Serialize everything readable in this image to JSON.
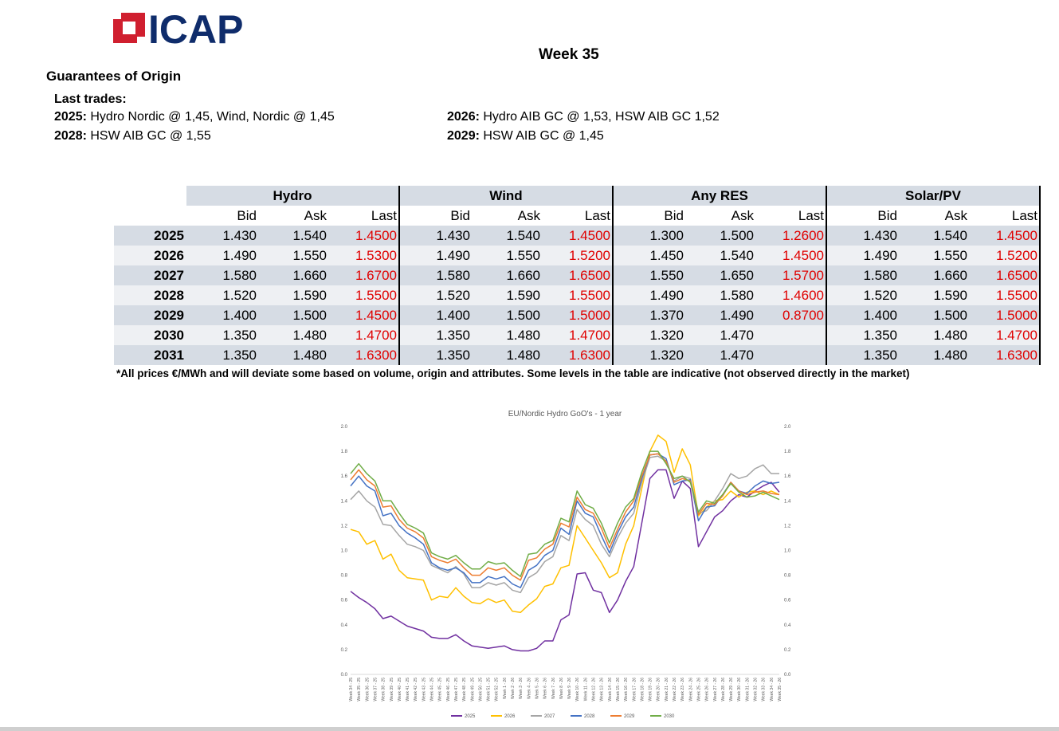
{
  "header": {
    "logo_text": "ICAP",
    "week": "Week 35",
    "section_title": "Guarantees of Origin"
  },
  "trades": {
    "heading": "Last trades:",
    "items": [
      {
        "year": "2025:",
        "text": " Hydro Nordic @ 1,45, Wind, Nordic @ 1,45"
      },
      {
        "year": "2026:",
        "text": " Hydro AIB GC @ 1,53, HSW AIB GC 1,52"
      },
      {
        "year": "2028:",
        "text": " HSW AIB GC @ 1,55"
      },
      {
        "year": "2029:",
        "text": " HSW AIB GC @ 1,45"
      }
    ]
  },
  "table": {
    "groups": [
      "Hydro",
      "Wind",
      "Any RES",
      "Solar/PV"
    ],
    "subheaders": [
      "Bid",
      "Ask",
      "Last"
    ],
    "rows": [
      {
        "year": "2025",
        "cells": [
          "1.430",
          "1.540",
          "1.4500",
          "1.430",
          "1.540",
          "1.4500",
          "1.300",
          "1.500",
          "1.2600",
          "1.430",
          "1.540",
          "1.4500"
        ]
      },
      {
        "year": "2026",
        "cells": [
          "1.490",
          "1.550",
          "1.5300",
          "1.490",
          "1.550",
          "1.5200",
          "1.450",
          "1.540",
          "1.4500",
          "1.490",
          "1.550",
          "1.5200"
        ]
      },
      {
        "year": "2027",
        "cells": [
          "1.580",
          "1.660",
          "1.6700",
          "1.580",
          "1.660",
          "1.6500",
          "1.550",
          "1.650",
          "1.5700",
          "1.580",
          "1.660",
          "1.6500"
        ]
      },
      {
        "year": "2028",
        "cells": [
          "1.520",
          "1.590",
          "1.5500",
          "1.520",
          "1.590",
          "1.5500",
          "1.490",
          "1.580",
          "1.4600",
          "1.520",
          "1.590",
          "1.5500"
        ]
      },
      {
        "year": "2029",
        "cells": [
          "1.400",
          "1.500",
          "1.4500",
          "1.400",
          "1.500",
          "1.5000",
          "1.370",
          "1.490",
          "0.8700",
          "1.400",
          "1.500",
          "1.5000"
        ]
      },
      {
        "year": "2030",
        "cells": [
          "1.350",
          "1.480",
          "1.4700",
          "1.350",
          "1.480",
          "1.4700",
          "1.320",
          "1.470",
          "",
          "1.350",
          "1.480",
          "1.4700"
        ]
      },
      {
        "year": "2031",
        "cells": [
          "1.350",
          "1.480",
          "1.6300",
          "1.350",
          "1.480",
          "1.6300",
          "1.320",
          "1.470",
          "",
          "1.350",
          "1.480",
          "1.6300"
        ]
      }
    ],
    "footnote": "*All prices €/MWh and will deviate some based on volume, origin and attributes. Some levels in the table are indicative (not observed directly in the market)"
  },
  "colors": {
    "logo_blue": "#0f2c6b",
    "logo_red": "#d01f2f",
    "header_shade": "#d6dce4",
    "row_alt": "#eef0f3",
    "last_price": "#e00000"
  },
  "chart_data": {
    "type": "line",
    "title": "EU/Nordic Hydro GoO's - 1 year",
    "ylim": [
      0.0,
      2.0
    ],
    "yticks": [
      "0.0",
      "0.2",
      "0.4",
      "0.6",
      "0.8",
      "1.0",
      "1.2",
      "1.4",
      "1.6",
      "1.8",
      "2.0"
    ],
    "grid": false,
    "legend": "bottom",
    "x": [
      "Week 34 - 25",
      "Week 35 - 25",
      "Week 36 - 25",
      "Week 37 - 25",
      "Week 38 - 25",
      "Week 39 - 25",
      "Week 40 - 25",
      "Week 41 - 25",
      "Week 42 - 25",
      "Week 43 - 25",
      "Week 44 - 25",
      "Week 45 - 25",
      "Week 46 - 25",
      "Week 47 - 25",
      "Week 48 - 25",
      "Week 49 - 25",
      "Week 50 - 25",
      "Week 51 - 25",
      "Week 52 - 25",
      "Week 1 - 26",
      "Week 2 - 26",
      "Week 3 - 26",
      "Week 4 - 26",
      "Week 5 - 26",
      "Week 6 - 26",
      "Week 7 - 26",
      "Week 8 - 26",
      "Week 9 - 26",
      "Week 10 - 26",
      "Week 11 - 26",
      "Week 12 - 26",
      "Week 13 - 26",
      "Week 14 - 26",
      "Week 15 - 26",
      "Week 16 - 26",
      "Week 17 - 26",
      "Week 18 - 26",
      "Week 19 - 26",
      "Week 20 - 26",
      "Week 21 - 26",
      "Week 22 - 26",
      "Week 23 - 26",
      "Week 24 - 26",
      "Week 25 - 26",
      "Week 26 - 26",
      "Week 27 - 26",
      "Week 28 - 26",
      "Week 29 - 26",
      "Week 30 - 26",
      "Week 31 - 26",
      "Week 32 - 26",
      "Week 33 - 26",
      "Week 34 - 26",
      "Week 35 - 26"
    ],
    "series": [
      {
        "name": "2025",
        "color": "#7030a0",
        "values": [
          0.67,
          0.62,
          0.58,
          0.53,
          0.45,
          0.47,
          0.43,
          0.39,
          0.37,
          0.35,
          0.3,
          0.29,
          0.29,
          0.32,
          0.27,
          0.23,
          0.22,
          0.21,
          0.22,
          0.23,
          0.2,
          0.19,
          0.19,
          0.21,
          0.27,
          0.27,
          0.44,
          0.48,
          0.81,
          0.82,
          0.68,
          0.66,
          0.5,
          0.6,
          0.75,
          0.87,
          1.22,
          1.58,
          1.65,
          1.65,
          1.42,
          1.56,
          1.5,
          1.03,
          1.15,
          1.27,
          1.32,
          1.4,
          1.45,
          1.43,
          1.48,
          1.52,
          1.55,
          1.47
        ]
      },
      {
        "name": "2026",
        "color": "#ffc000",
        "values": [
          1.17,
          1.15,
          1.05,
          1.08,
          0.93,
          0.97,
          0.84,
          0.78,
          0.77,
          0.76,
          0.6,
          0.63,
          0.62,
          0.7,
          0.63,
          0.58,
          0.57,
          0.61,
          0.58,
          0.6,
          0.51,
          0.5,
          0.56,
          0.61,
          0.71,
          0.73,
          0.86,
          0.88,
          1.2,
          1.1,
          1.0,
          0.9,
          0.78,
          0.82,
          1.05,
          1.2,
          1.5,
          1.8,
          1.93,
          1.88,
          1.63,
          1.82,
          1.69,
          1.28,
          1.35,
          1.4,
          1.41,
          1.48,
          1.43,
          1.47,
          1.48,
          1.45,
          1.48,
          1.45
        ]
      },
      {
        "name": "2027",
        "color": "#a5a5a5",
        "values": [
          1.41,
          1.48,
          1.4,
          1.35,
          1.21,
          1.2,
          1.12,
          1.05,
          1.03,
          1.0,
          0.88,
          0.85,
          0.82,
          0.87,
          0.81,
          0.7,
          0.7,
          0.74,
          0.72,
          0.74,
          0.68,
          0.66,
          0.78,
          0.82,
          0.91,
          0.95,
          1.12,
          1.08,
          1.33,
          1.25,
          1.2,
          1.05,
          0.95,
          1.1,
          1.22,
          1.3,
          1.55,
          1.75,
          1.76,
          1.72,
          1.56,
          1.6,
          1.58,
          1.3,
          1.32,
          1.4,
          1.5,
          1.62,
          1.58,
          1.6,
          1.66,
          1.69,
          1.62,
          1.62
        ]
      },
      {
        "name": "2028",
        "color": "#4472c4",
        "values": [
          1.52,
          1.6,
          1.52,
          1.48,
          1.28,
          1.3,
          1.2,
          1.14,
          1.1,
          1.05,
          0.9,
          0.86,
          0.84,
          0.86,
          0.82,
          0.74,
          0.74,
          0.79,
          0.77,
          0.79,
          0.73,
          0.7,
          0.84,
          0.88,
          0.96,
          1.0,
          1.18,
          1.13,
          1.4,
          1.3,
          1.27,
          1.12,
          0.98,
          1.14,
          1.27,
          1.35,
          1.58,
          1.77,
          1.78,
          1.74,
          1.53,
          1.56,
          1.57,
          1.24,
          1.35,
          1.36,
          1.45,
          1.55,
          1.48,
          1.46,
          1.52,
          1.56,
          1.54,
          1.55
        ]
      },
      {
        "name": "2029",
        "color": "#ed7d31",
        "values": [
          1.57,
          1.65,
          1.57,
          1.52,
          1.35,
          1.36,
          1.25,
          1.18,
          1.15,
          1.1,
          0.95,
          0.92,
          0.9,
          0.93,
          0.86,
          0.8,
          0.8,
          0.86,
          0.84,
          0.86,
          0.8,
          0.76,
          0.92,
          0.94,
          1.01,
          1.05,
          1.22,
          1.19,
          1.43,
          1.33,
          1.3,
          1.18,
          1.02,
          1.17,
          1.31,
          1.4,
          1.6,
          1.77,
          1.78,
          1.72,
          1.55,
          1.58,
          1.56,
          1.29,
          1.38,
          1.37,
          1.44,
          1.55,
          1.48,
          1.45,
          1.47,
          1.48,
          1.46,
          1.45
        ]
      },
      {
        "name": "2030",
        "color": "#70ad47",
        "values": [
          1.62,
          1.7,
          1.62,
          1.56,
          1.4,
          1.4,
          1.3,
          1.21,
          1.18,
          1.14,
          0.98,
          0.95,
          0.93,
          0.96,
          0.9,
          0.85,
          0.85,
          0.91,
          0.89,
          0.9,
          0.84,
          0.79,
          0.97,
          0.98,
          1.05,
          1.08,
          1.26,
          1.23,
          1.48,
          1.37,
          1.34,
          1.22,
          1.06,
          1.22,
          1.35,
          1.42,
          1.63,
          1.8,
          1.8,
          1.7,
          1.58,
          1.6,
          1.55,
          1.31,
          1.4,
          1.38,
          1.45,
          1.54,
          1.47,
          1.43,
          1.44,
          1.47,
          1.44,
          1.41
        ]
      }
    ]
  }
}
